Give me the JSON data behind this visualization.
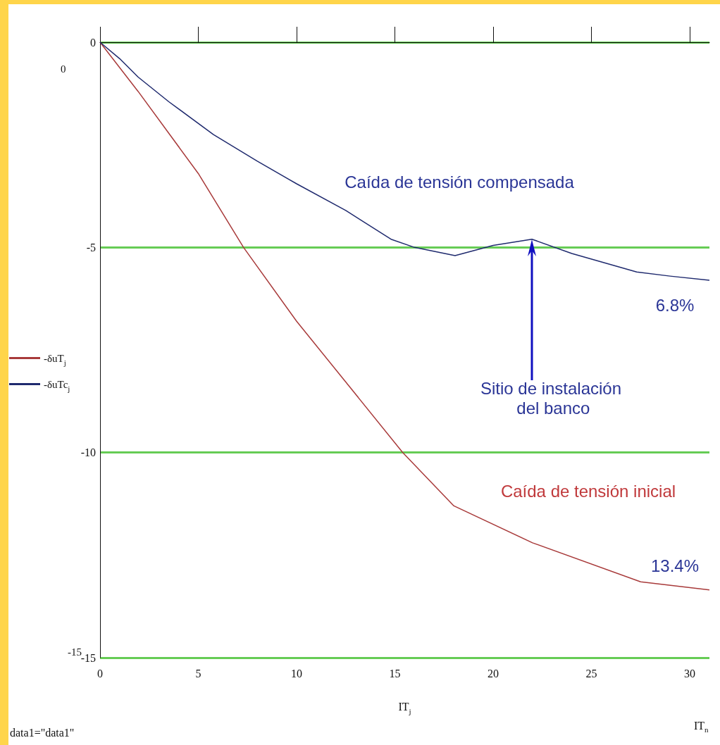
{
  "chart_data": {
    "type": "line",
    "xlabel": "IT$_{j}$",
    "x": [
      0,
      1,
      1.94,
      3.5,
      5.77,
      8,
      10.0,
      12.5,
      14.8,
      16,
      18.06,
      20,
      21.97,
      24,
      27.3,
      29,
      31
    ],
    "series": [
      {
        "name": "-δuT$_{j}$",
        "color": "#a83a3a",
        "x": [
          0,
          1.94,
          5,
          7.3,
          10,
          15.4,
          18,
          22,
          27.5,
          31
        ],
        "values": [
          0,
          -1.2,
          -3.2,
          -5.0,
          -6.8,
          -10.0,
          -11.3,
          -12.2,
          -13.15,
          -13.35
        ]
      },
      {
        "name": "-δuTc$_{j}$",
        "color": "#1f2a6e",
        "values": [
          0,
          -0.4,
          -0.85,
          -1.45,
          -2.25,
          -2.9,
          -3.45,
          -4.1,
          -4.8,
          -5.0,
          -5.2,
          -4.95,
          -4.8,
          -5.15,
          -5.6,
          -5.7,
          -5.8
        ]
      }
    ],
    "xlim": [
      0,
      31
    ],
    "xticks": [
      0,
      5,
      10,
      15,
      20,
      25,
      30
    ],
    "ylim": [
      -15,
      0
    ],
    "yticks": [
      0,
      -5,
      -10,
      -15
    ],
    "grid": "y",
    "legend": "left",
    "marker": "none",
    "line_style": "solid",
    "annotations": [
      "Caída de tensión compensada",
      "6.8%",
      "Sitio de instalación del banco",
      "Caída de tensión inicial",
      "13.4%",
      "0",
      "-15",
      "IT$_{n}$",
      "data1=\"data1\""
    ]
  }
}
